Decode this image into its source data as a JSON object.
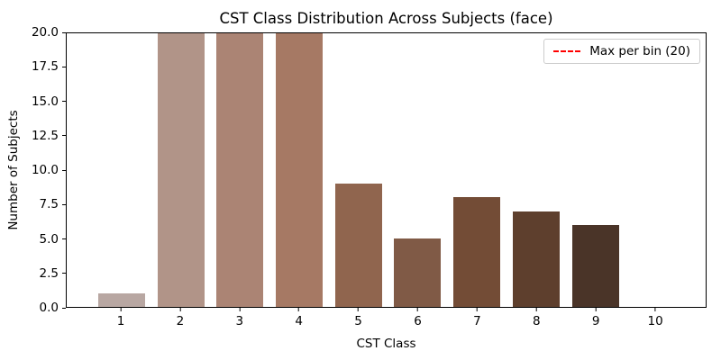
{
  "chart_data": {
    "type": "bar",
    "title": "CST Class Distribution Across Subjects (face)",
    "xlabel": "CST Class",
    "ylabel": "Number of Subjects",
    "categories": [
      "1",
      "2",
      "3",
      "4",
      "5",
      "6",
      "7",
      "8",
      "9",
      "10"
    ],
    "values": [
      1,
      20,
      20,
      20,
      9,
      5,
      8,
      7,
      6,
      0
    ],
    "bar_colors": [
      "#b8a7a2",
      "#b19488",
      "#ab8474",
      "#a67964",
      "#90654e",
      "#805a46",
      "#734c36",
      "#5e3f2d",
      "#4a3428",
      "#3a281e"
    ],
    "ylim": [
      0,
      20
    ],
    "yticks": [
      "0.0",
      "2.5",
      "5.0",
      "7.5",
      "10.0",
      "12.5",
      "15.0",
      "17.5",
      "20.0"
    ],
    "grid": false,
    "legend": {
      "position": "upper right",
      "entries": [
        {
          "label": "Max per bin (20)",
          "color": "#ff0000",
          "style": "dashed"
        }
      ]
    },
    "max_line": {
      "y": 20,
      "color": "#ff0000",
      "style": "dashed"
    }
  }
}
